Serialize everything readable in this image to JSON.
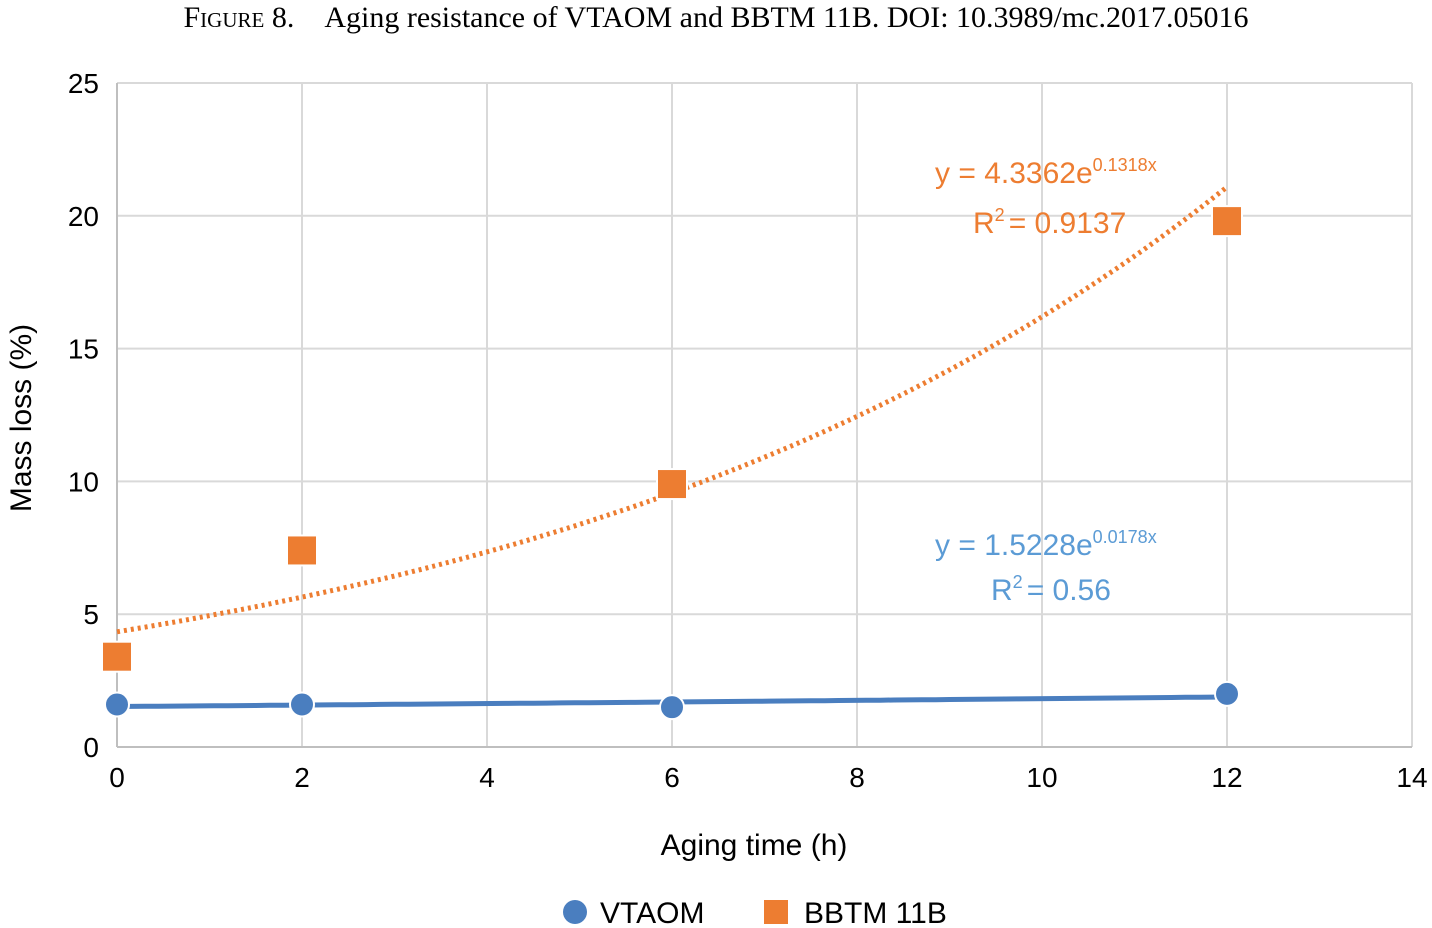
{
  "caption": {
    "prefix": "Figure 8.",
    "text": "Aging resistance of VTAOM and BBTM 11B. DOI: 10.3989/mc.2017.05016"
  },
  "colors": {
    "vtaom": "#4a7ebf",
    "bbtm": "#ed7d31",
    "vtaom_equation": "#5b9bd5",
    "grid": "#d9d9d9",
    "axis": "#bfbfbf"
  },
  "chart_data": {
    "type": "scatter",
    "xlabel": "Aging time (h)",
    "ylabel": "Mass loss (%)",
    "xlim": [
      0,
      14
    ],
    "ylim": [
      0,
      25
    ],
    "x_ticks": [
      0,
      2,
      4,
      6,
      8,
      10,
      12,
      14
    ],
    "y_ticks": [
      0,
      5,
      10,
      15,
      20,
      25
    ],
    "grid": true,
    "legend_position": "bottom",
    "series": [
      {
        "name": "VTAOM",
        "marker": "circle",
        "x": [
          0,
          2,
          6,
          12
        ],
        "y": [
          1.6,
          1.6,
          1.5,
          2.0
        ],
        "trendline": {
          "type": "exponential",
          "a": 1.5228,
          "b": 0.0178,
          "style": "solid",
          "equation_base": "y = 1.5228e",
          "equation_exp": "0.0178x",
          "r2_base": "R",
          "r2_sup": "2",
          "r2_value": "= 0.56"
        }
      },
      {
        "name": "BBTM 11B",
        "marker": "square",
        "x": [
          0,
          2,
          6,
          12
        ],
        "y": [
          3.4,
          7.4,
          9.9,
          19.8
        ],
        "trendline": {
          "type": "exponential",
          "a": 4.3362,
          "b": 0.1318,
          "style": "dotted",
          "equation_base": "y = 4.3362e",
          "equation_exp": "0.1318x",
          "r2_base": "R",
          "r2_sup": "2",
          "r2_value": "= 0.9137"
        }
      }
    ]
  }
}
